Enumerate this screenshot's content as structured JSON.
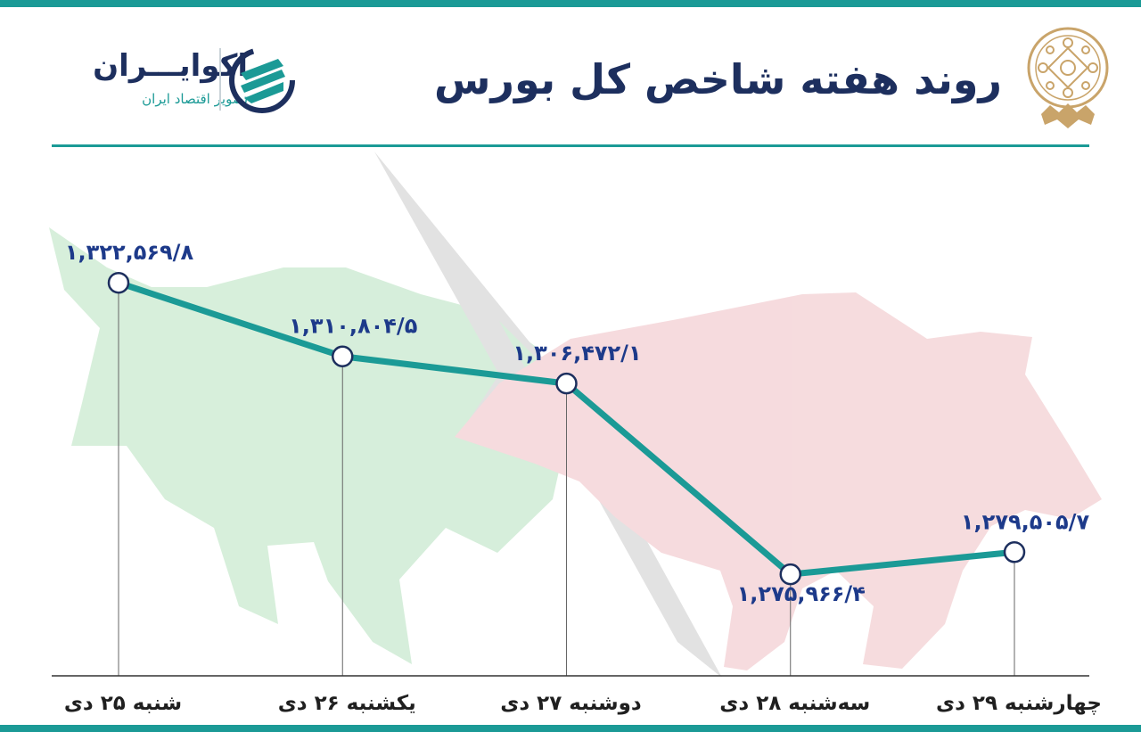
{
  "header": {
    "title": "روند هفته شاخص کل بورس",
    "brand_name": "اکوایـــران",
    "brand_tagline": "تصویر اقتصاد ایران"
  },
  "colors": {
    "accent": "#1b9a96",
    "title": "#1d2f5e",
    "value_label": "#1d3a8a",
    "bull_watermark": "#c9e9cf",
    "bear_watermark": "#f3c9cc",
    "arrow_watermark": "#c7c7c7"
  },
  "icons": {
    "seal": "stock-exchange-seal-icon",
    "brand": "ecoiran-logo-icon",
    "background": "bull-bear-watermark"
  },
  "chart_data": {
    "type": "line",
    "categories": [
      "شنبه ۲۵ دی",
      "یکشنبه ۲۶ دی",
      "دوشنبه ۲۷ دی",
      "سه‌شنبه ۲۸ دی",
      "چهارشنبه ۲۹ دی"
    ],
    "values": [
      1322569.8,
      1310804.5,
      1306472.1,
      1275966.4,
      1279505.7
    ],
    "value_labels": [
      "۱,۳۲۲,۵۶۹/۸",
      "۱,۳۱۰,۸۰۴/۵",
      "۱,۳۰۶,۴۷۲/۱",
      "۱,۲۷۵,۹۶۶/۴",
      "۱,۲۷۹,۵۰۵/۷"
    ],
    "title": "روند هفته شاخص کل بورس",
    "xlabel": "",
    "ylabel": "",
    "ylim": [
      1268000,
      1335000
    ],
    "grid": false,
    "legend": "none"
  }
}
